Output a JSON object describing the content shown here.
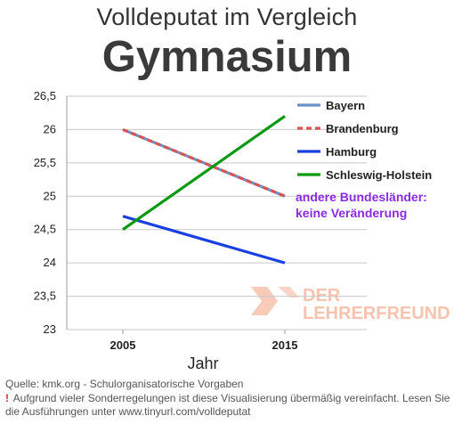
{
  "header": {
    "title": "Volldeputat im Vergleich",
    "subtitle": "Gymnasium"
  },
  "chart_data": {
    "type": "line",
    "x": [
      2005,
      2015
    ],
    "xlabel": "Jahr",
    "ylabel": "",
    "ylim": [
      23,
      26.5
    ],
    "yticks": [
      "23",
      "23,5",
      "24",
      "24,5",
      "25",
      "25,5",
      "26",
      "26,5"
    ],
    "ytick_values": [
      23,
      23.5,
      24,
      24.5,
      25,
      25.5,
      26,
      26.5
    ],
    "xticks": [
      "2005",
      "2015"
    ],
    "grid": "horizontal",
    "legend_position": "right",
    "series": [
      {
        "name": "Bayern",
        "values": [
          26,
          25
        ],
        "color": "#6b8fc8",
        "dash": "none"
      },
      {
        "name": "Brandenburg",
        "values": [
          26,
          25
        ],
        "color": "#d9534f",
        "dash": "6 4"
      },
      {
        "name": "Hamburg",
        "values": [
          24.7,
          24
        ],
        "color": "#1a3fe0",
        "dash": "none"
      },
      {
        "name": "Schleswig-Holstein",
        "values": [
          24.5,
          26.2
        ],
        "color": "#0a9a12",
        "dash": "none"
      }
    ],
    "annotation": {
      "line1": "andere Bundesländer:",
      "line2": "keine Veränderung",
      "color": "#8a2be2"
    }
  },
  "watermark": {
    "line1": "DER",
    "line2": "LEHRERFREUND",
    "color": "#f6b8a0"
  },
  "footer": {
    "source": "Quelle: kmk.org - Schulorganisatorische Vorgaben",
    "note_mark": "!",
    "note": "Aufgrund vieler Sonderregelungen ist diese Visualisierung übermäßig vereinfacht. Lesen Sie die Ausführungen unter www.tinyurl.com/volldeputat"
  }
}
